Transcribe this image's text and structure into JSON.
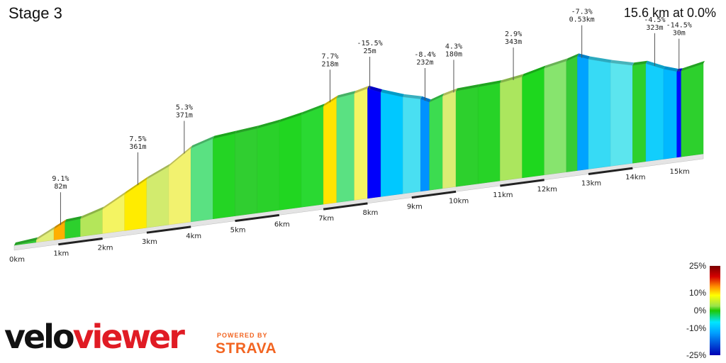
{
  "header": {
    "title": "Stage 3",
    "summary": "15.6 km at 0.0%"
  },
  "chart_data": {
    "type": "area",
    "xlabel": "",
    "ylabel": "",
    "xlim": [
      0,
      15.6
    ],
    "km_labels": [
      "0km",
      "1km",
      "2km",
      "3km",
      "4km",
      "5km",
      "6km",
      "7km",
      "8km",
      "9km",
      "10km",
      "11km",
      "12km",
      "13km",
      "14km",
      "15km"
    ],
    "profile": [
      {
        "km": 0.0,
        "elev": 0
      },
      {
        "km": 0.5,
        "elev": 2
      },
      {
        "km": 0.9,
        "elev": 10
      },
      {
        "km": 1.15,
        "elev": 15
      },
      {
        "km": 1.5,
        "elev": 16
      },
      {
        "km": 2.0,
        "elev": 22
      },
      {
        "km": 2.5,
        "elev": 33
      },
      {
        "km": 3.0,
        "elev": 44
      },
      {
        "km": 3.5,
        "elev": 53
      },
      {
        "km": 4.0,
        "elev": 67
      },
      {
        "km": 4.5,
        "elev": 73
      },
      {
        "km": 5.0,
        "elev": 75
      },
      {
        "km": 5.5,
        "elev": 77
      },
      {
        "km": 6.0,
        "elev": 80
      },
      {
        "km": 6.5,
        "elev": 84
      },
      {
        "km": 7.0,
        "elev": 89
      },
      {
        "km": 7.3,
        "elev": 95
      },
      {
        "km": 7.7,
        "elev": 97
      },
      {
        "km": 8.0,
        "elev": 100
      },
      {
        "km": 8.3,
        "elev": 95
      },
      {
        "km": 8.8,
        "elev": 88
      },
      {
        "km": 9.2,
        "elev": 84
      },
      {
        "km": 9.4,
        "elev": 80
      },
      {
        "km": 9.7,
        "elev": 84
      },
      {
        "km": 10.0,
        "elev": 87
      },
      {
        "km": 10.5,
        "elev": 88
      },
      {
        "km": 11.0,
        "elev": 89
      },
      {
        "km": 11.5,
        "elev": 92
      },
      {
        "km": 12.0,
        "elev": 97
      },
      {
        "km": 12.5,
        "elev": 101
      },
      {
        "km": 12.75,
        "elev": 104
      },
      {
        "km": 13.0,
        "elev": 100
      },
      {
        "km": 13.5,
        "elev": 94
      },
      {
        "km": 14.0,
        "elev": 89
      },
      {
        "km": 14.3,
        "elev": 89
      },
      {
        "km": 14.7,
        "elev": 82
      },
      {
        "km": 15.0,
        "elev": 78
      },
      {
        "km": 15.1,
        "elev": 78
      },
      {
        "km": 15.3,
        "elev": 80
      },
      {
        "km": 15.6,
        "elev": 82
      }
    ],
    "segments": [
      {
        "from": 0.0,
        "to": 0.5,
        "grade": 0.3
      },
      {
        "from": 0.5,
        "to": 0.9,
        "grade": 4.5
      },
      {
        "from": 0.9,
        "to": 1.15,
        "grade": 9.1
      },
      {
        "from": 1.15,
        "to": 1.5,
        "grade": 0.5
      },
      {
        "from": 1.5,
        "to": 2.0,
        "grade": 3.0
      },
      {
        "from": 2.0,
        "to": 2.5,
        "grade": 5.5
      },
      {
        "from": 2.5,
        "to": 3.0,
        "grade": 7.5
      },
      {
        "from": 3.0,
        "to": 3.5,
        "grade": 4.0
      },
      {
        "from": 3.5,
        "to": 4.0,
        "grade": 5.3
      },
      {
        "from": 4.0,
        "to": 4.5,
        "grade": 2.0
      },
      {
        "from": 4.5,
        "to": 5.0,
        "grade": 0.8
      },
      {
        "from": 5.0,
        "to": 5.5,
        "grade": 0.4
      },
      {
        "from": 5.5,
        "to": 6.0,
        "grade": 0.6
      },
      {
        "from": 6.0,
        "to": 6.5,
        "grade": 0.9
      },
      {
        "from": 6.5,
        "to": 7.0,
        "grade": 1.2
      },
      {
        "from": 7.0,
        "to": 7.3,
        "grade": 7.7
      },
      {
        "from": 7.3,
        "to": 7.7,
        "grade": 2.0
      },
      {
        "from": 7.7,
        "to": 8.0,
        "grade": 5.5
      },
      {
        "from": 8.0,
        "to": 8.3,
        "grade": -15.5
      },
      {
        "from": 8.3,
        "to": 8.8,
        "grade": -5.0
      },
      {
        "from": 8.8,
        "to": 9.2,
        "grade": -3.0
      },
      {
        "from": 9.2,
        "to": 9.4,
        "grade": -8.4
      },
      {
        "from": 9.4,
        "to": 9.7,
        "grade": 1.5
      },
      {
        "from": 9.7,
        "to": 10.0,
        "grade": 4.3
      },
      {
        "from": 10.0,
        "to": 10.5,
        "grade": 0.5
      },
      {
        "from": 10.5,
        "to": 11.0,
        "grade": 0.7
      },
      {
        "from": 11.0,
        "to": 11.5,
        "grade": 2.9
      },
      {
        "from": 11.5,
        "to": 12.0,
        "grade": 1.0
      },
      {
        "from": 12.0,
        "to": 12.5,
        "grade": 2.5
      },
      {
        "from": 12.5,
        "to": 12.75,
        "grade": 0.2
      },
      {
        "from": 12.75,
        "to": 13.0,
        "grade": -7.3
      },
      {
        "from": 13.0,
        "to": 13.5,
        "grade": -3.5
      },
      {
        "from": 13.5,
        "to": 14.0,
        "grade": -2.5
      },
      {
        "from": 14.0,
        "to": 14.3,
        "grade": 0.5
      },
      {
        "from": 14.3,
        "to": 14.7,
        "grade": -4.5
      },
      {
        "from": 14.7,
        "to": 15.0,
        "grade": -6.0
      },
      {
        "from": 15.0,
        "to": 15.1,
        "grade": -14.5
      },
      {
        "from": 15.1,
        "to": 15.6,
        "grade": 0.5
      }
    ],
    "annotations": [
      {
        "km": 1.05,
        "grade": "9.1%",
        "length": "82m",
        "elev": 13
      },
      {
        "km": 2.8,
        "grade": "7.5%",
        "length": "361m",
        "elev": 40
      },
      {
        "km": 3.85,
        "grade": "5.3%",
        "length": "371m",
        "elev": 63
      },
      {
        "km": 7.15,
        "grade": "7.7%",
        "length": "218m",
        "elev": 92
      },
      {
        "km": 8.05,
        "grade": "-15.5%",
        "length": "25m",
        "elev": 99
      },
      {
        "km": 9.3,
        "grade": "-8.4%",
        "length": "232m",
        "elev": 82
      },
      {
        "km": 9.95,
        "grade": "4.3%",
        "length": "180m",
        "elev": 86
      },
      {
        "km": 11.3,
        "grade": "2.9%",
        "length": "343m",
        "elev": 90
      },
      {
        "km": 12.85,
        "grade": "-7.3%",
        "length": "0.53km",
        "elev": 102
      },
      {
        "km": 14.5,
        "grade": "-4.5%",
        "length": "323m",
        "elev": 86
      },
      {
        "km": 15.05,
        "grade": "-14.5%",
        "length": "30m",
        "elev": 78
      }
    ],
    "legend": {
      "labels": [
        "25%",
        "10%",
        "0%",
        "-10%",
        "-25%"
      ],
      "values": [
        25,
        10,
        0,
        -10,
        -25
      ]
    }
  },
  "branding": {
    "logo_left": "velo",
    "logo_right": "viewer",
    "powered_by": "POWERED BY",
    "strava": "STRAVA"
  }
}
